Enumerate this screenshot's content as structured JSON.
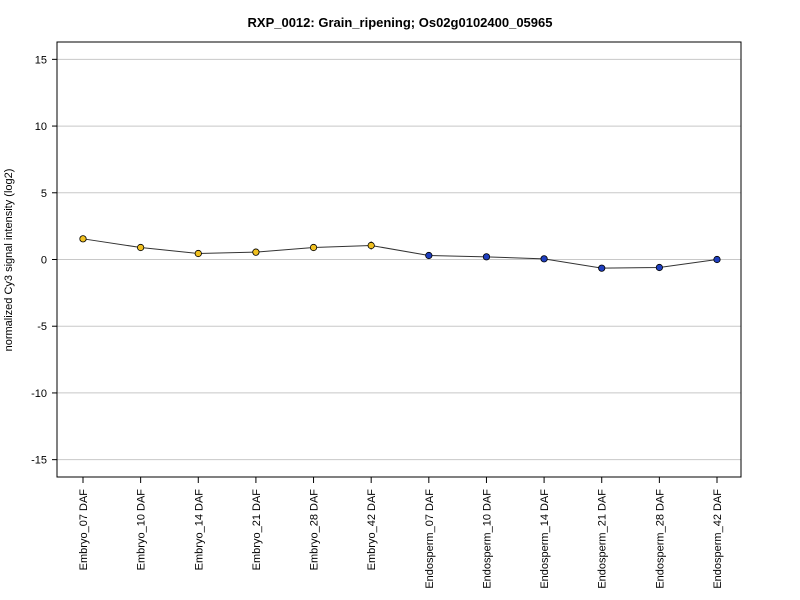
{
  "chart_data": {
    "type": "line",
    "title": "RXP_0012: Grain_ripening; Os02g0102400_05965",
    "xlabel": "",
    "ylabel": "normalized Cy3 signal intensity (log2)",
    "ylim": [
      -16.3,
      16.3
    ],
    "yticks": [
      15,
      10,
      5,
      0,
      -5,
      -10,
      -15
    ],
    "ytick_labels": [
      "15",
      "10",
      "5",
      "0",
      "-5",
      "-10",
      "-15"
    ],
    "grid": true,
    "categories": [
      "Embryo_07 DAF",
      "Embryo_10 DAF",
      "Embryo_14 DAF",
      "Embryo_21 DAF",
      "Embryo_28 DAF",
      "Embryo_42 DAF",
      "Endosperm_07 DAF",
      "Endosperm_10 DAF",
      "Endosperm_14 DAF",
      "Endosperm_21 DAF",
      "Endosperm_28 DAF",
      "Endosperm_42 DAF"
    ],
    "values": [
      1.55,
      0.9,
      0.45,
      0.55,
      0.9,
      1.05,
      0.3,
      0.2,
      0.05,
      -0.65,
      -0.6,
      0.0
    ],
    "errors": [
      0.2,
      0.2,
      0.15,
      0.15,
      0.15,
      0.3,
      0.15,
      0.1,
      0.1,
      0.1,
      0.1,
      0.1
    ],
    "point_colors": [
      "#f0c020",
      "#f0c020",
      "#f0c020",
      "#f0c020",
      "#f0c020",
      "#f0c020",
      "#1f3fbf",
      "#1f3fbf",
      "#1f3fbf",
      "#1f3fbf",
      "#1f3fbf",
      "#1f3fbf"
    ],
    "line_color": "#333333",
    "grid_color": "#c8c8c8"
  }
}
